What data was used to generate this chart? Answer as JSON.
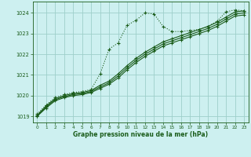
{
  "title": "Graphe pression niveau de la mer (hPa)",
  "bg_color": "#cdf0f0",
  "grid_color": "#9ecfca",
  "line_color": "#1a5c1a",
  "xlim": [
    -0.5,
    23.5
  ],
  "ylim": [
    1018.7,
    1024.55
  ],
  "yticks": [
    1019,
    1020,
    1021,
    1022,
    1023,
    1024
  ],
  "xticks": [
    0,
    1,
    2,
    3,
    4,
    5,
    6,
    7,
    8,
    9,
    10,
    11,
    12,
    13,
    14,
    15,
    16,
    17,
    18,
    19,
    20,
    21,
    22,
    23
  ],
  "series1_dotted": {
    "x": [
      0,
      1,
      2,
      3,
      4,
      5,
      6,
      7,
      8,
      9,
      10,
      11,
      12,
      13,
      14,
      15,
      16,
      17,
      18,
      19,
      20,
      21,
      22,
      23
    ],
    "y": [
      1019.1,
      1019.55,
      1019.9,
      1020.05,
      1020.15,
      1020.2,
      1020.3,
      1021.05,
      1022.25,
      1022.55,
      1023.4,
      1023.65,
      1024.0,
      1023.95,
      1023.35,
      1023.1,
      1023.1,
      1023.15,
      1023.2,
      1023.35,
      1023.6,
      1024.05,
      1024.15,
      1024.1
    ]
  },
  "series2": {
    "x": [
      0,
      1,
      2,
      3,
      4,
      5,
      6,
      7,
      8,
      9,
      10,
      11,
      12,
      13,
      14,
      15,
      16,
      17,
      18,
      19,
      20,
      21,
      22,
      23
    ],
    "y": [
      1019.05,
      1019.5,
      1019.85,
      1020.0,
      1020.1,
      1020.15,
      1020.25,
      1020.5,
      1020.7,
      1021.05,
      1021.45,
      1021.8,
      1022.1,
      1022.35,
      1022.6,
      1022.75,
      1022.9,
      1023.05,
      1023.2,
      1023.35,
      1023.55,
      1023.8,
      1024.05,
      1024.1
    ]
  },
  "series3": {
    "x": [
      0,
      1,
      2,
      3,
      4,
      5,
      6,
      7,
      8,
      9,
      10,
      11,
      12,
      13,
      14,
      15,
      16,
      17,
      18,
      19,
      20,
      21,
      22,
      23
    ],
    "y": [
      1019.0,
      1019.45,
      1019.8,
      1019.95,
      1020.05,
      1020.1,
      1020.2,
      1020.42,
      1020.62,
      1020.95,
      1021.35,
      1021.7,
      1022.0,
      1022.25,
      1022.5,
      1022.65,
      1022.8,
      1022.95,
      1023.1,
      1023.25,
      1023.45,
      1023.7,
      1023.95,
      1024.0
    ]
  },
  "series4": {
    "x": [
      0,
      1,
      2,
      3,
      4,
      5,
      6,
      7,
      8,
      9,
      10,
      11,
      12,
      13,
      14,
      15,
      16,
      17,
      18,
      19,
      20,
      21,
      22,
      23
    ],
    "y": [
      1019.0,
      1019.4,
      1019.75,
      1019.9,
      1020.0,
      1020.05,
      1020.15,
      1020.35,
      1020.55,
      1020.85,
      1021.25,
      1021.6,
      1021.9,
      1022.15,
      1022.4,
      1022.55,
      1022.7,
      1022.85,
      1023.0,
      1023.15,
      1023.35,
      1023.6,
      1023.85,
      1023.9
    ]
  }
}
